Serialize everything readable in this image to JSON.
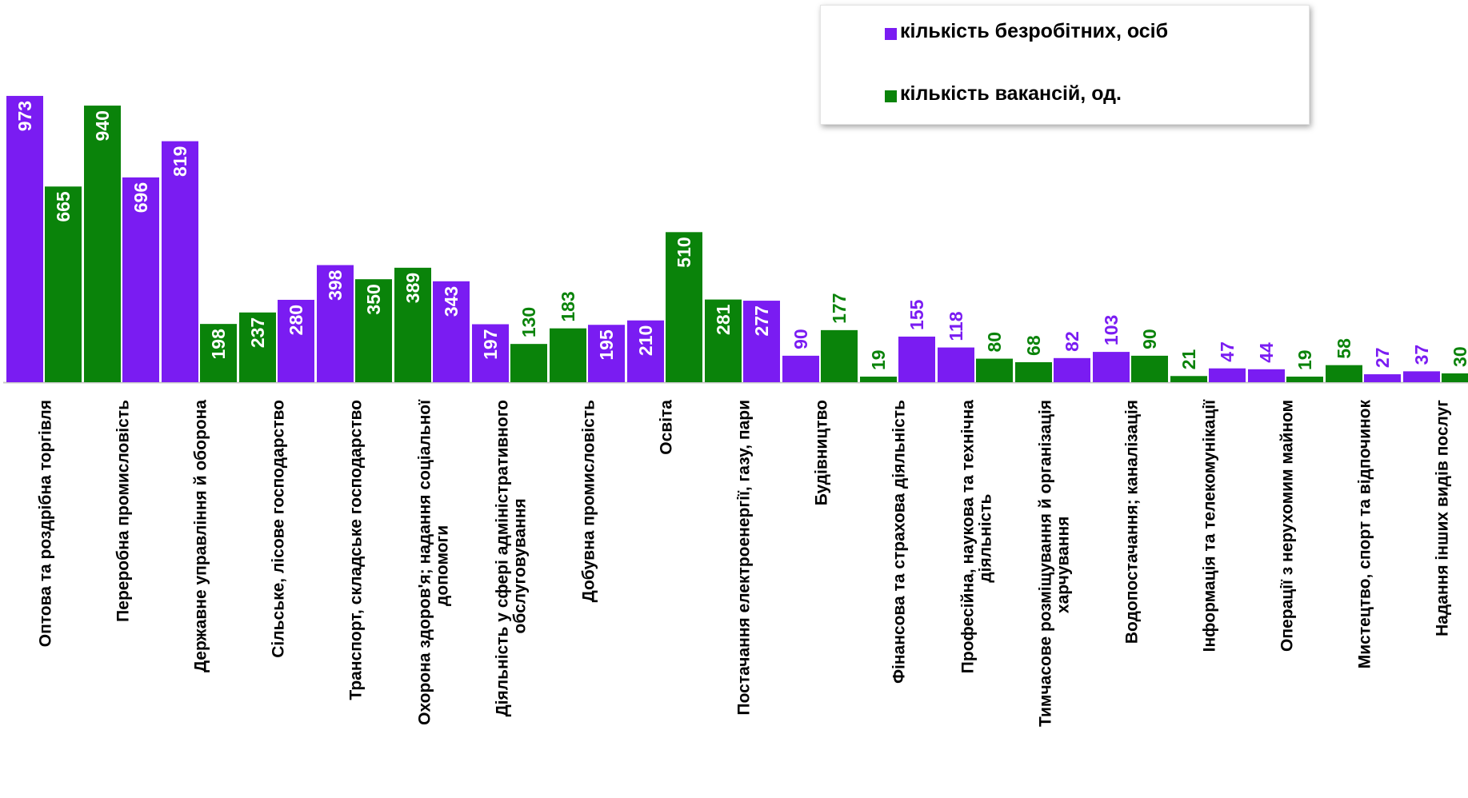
{
  "chart_data": {
    "type": "bar",
    "categories": [
      "Оптова та роздрібна торгівля",
      "Переробна промисловість",
      "Державне управління й оборона",
      "Сільське, лісове господарство",
      "Транспорт, складське господарство",
      "Охорона здоров'я; надання соціальної допомоги",
      "Діяльність у сфері адміністративного обслуговування",
      "Добувна промисловість",
      "Освіта",
      "Постачання електроенергії, газу, пари",
      "Будівництво",
      "Фінансова та страхова діяльність",
      "Професійна, наукова та технічна діяльність",
      "Тимчасове розміщування й організація харчування",
      "Водопостачання; каналізація",
      "Інформація та телекомунікації",
      "Операції з нерухомим майном",
      "Мистецтво, спорт та відпочинок",
      "Надання інших видів послуг"
    ],
    "category_lines": [
      [
        "Оптова та роздрібна торгівля"
      ],
      [
        "Переробна промисловість"
      ],
      [
        "Державне управління й оборона"
      ],
      [
        "Сільське, лісове господарство"
      ],
      [
        "Транспорт, складське господарство"
      ],
      [
        "Охорона здоров'я; надання соціальної",
        "допомоги"
      ],
      [
        "Діяльність у сфері адміністративного",
        "обслуговування"
      ],
      [
        "Добувна промисловість"
      ],
      [
        "Освіта"
      ],
      [
        "Постачання електроенергії, газу, пари"
      ],
      [
        "Будівництво"
      ],
      [
        "Фінансова та страхова діяльність"
      ],
      [
        "Професійна, наукова та технічна",
        "діяльність"
      ],
      [
        "Тимчасове розміщування й організація",
        "харчування"
      ],
      [
        "Водопостачання; каналізація"
      ],
      [
        "Інформація та телекомунікації"
      ],
      [
        "Операції з нерухомим майном"
      ],
      [
        "Мистецтво, спорт та відпочинок"
      ],
      [
        "Надання інших видів послуг"
      ]
    ],
    "series": [
      {
        "name": "кількість безробітних, осіб",
        "color": "#7a1cf2",
        "values": [
          973,
          696,
          819,
          280,
          398,
          343,
          197,
          195,
          210,
          277,
          90,
          155,
          118,
          82,
          103,
          47,
          44,
          27,
          37
        ]
      },
      {
        "name": "кількість вакансій, од.",
        "color": "#0a830a",
        "values": [
          665,
          940,
          198,
          237,
          350,
          389,
          130,
          183,
          510,
          281,
          177,
          19,
          80,
          68,
          90,
          21,
          19,
          58,
          30
        ]
      }
    ],
    "ylim": [
      0,
      1000
    ],
    "grid": false,
    "legend_position": "top-right",
    "title": "",
    "xlabel": "",
    "ylabel": ""
  }
}
